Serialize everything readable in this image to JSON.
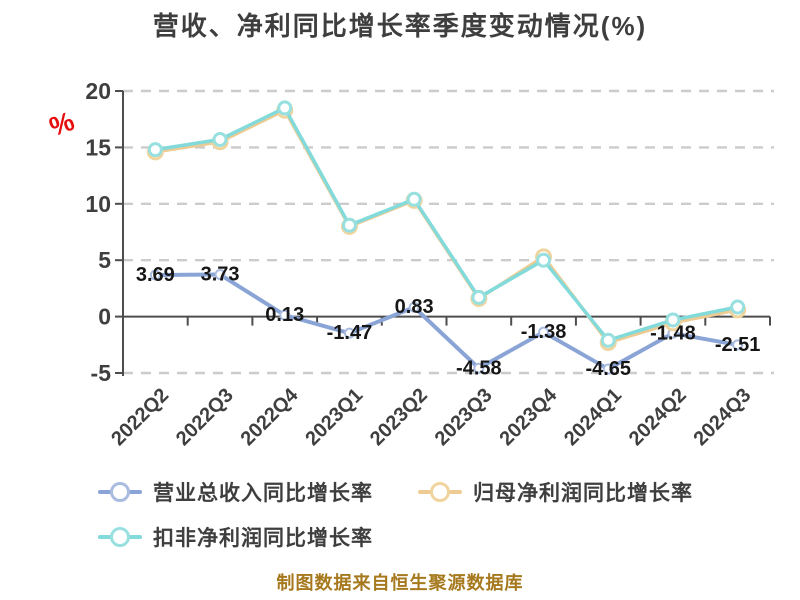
{
  "title": "营收、净利同比增长率季度变动情况(%)",
  "unit_icon": "%",
  "footer": "制图数据来自恒生聚源数据库",
  "colors": {
    "title_text": "#3e3e3e",
    "axis": "#4d4d4d",
    "gridline": "#cbcbcb",
    "tick_label": "#3f3f3f",
    "data_label": "#161616",
    "footer_text": "#a6791e",
    "unit_icon_red": "#e50d0d",
    "background": "#ffffff"
  },
  "chart_data": {
    "type": "line",
    "categories": [
      "2022Q2",
      "2022Q3",
      "2022Q4",
      "2023Q1",
      "2023Q2",
      "2023Q3",
      "2023Q4",
      "2024Q1",
      "2024Q2",
      "2024Q3"
    ],
    "series": [
      {
        "name": "营业总收入同比增长率",
        "color": "#8aa4d6",
        "marker_border": "#a9bce0",
        "values": [
          3.69,
          3.73,
          0.13,
          -1.47,
          0.83,
          -4.58,
          -1.38,
          -4.65,
          -1.48,
          -2.51
        ],
        "show_labels": true
      },
      {
        "name": "归母净利润同比增长率",
        "color": "#eecb92",
        "marker_border": "#f0d49e",
        "values": [
          14.6,
          15.5,
          18.3,
          8.0,
          10.3,
          1.6,
          5.3,
          -2.3,
          -0.55,
          0.6
        ],
        "show_labels": false
      },
      {
        "name": "扣非净利润同比增长率",
        "color": "#82dada",
        "marker_border": "#98e0e0",
        "values": [
          14.8,
          15.7,
          18.5,
          8.1,
          10.4,
          1.7,
          5.0,
          -2.1,
          -0.3,
          0.85
        ],
        "show_labels": false
      }
    ],
    "ylim": [
      -5,
      20
    ],
    "yticks": [
      20,
      15,
      10,
      5,
      0,
      -5
    ],
    "grid": "dashed horizontal",
    "legend_position": "bottom",
    "xlabel": "",
    "ylabel": "%"
  }
}
